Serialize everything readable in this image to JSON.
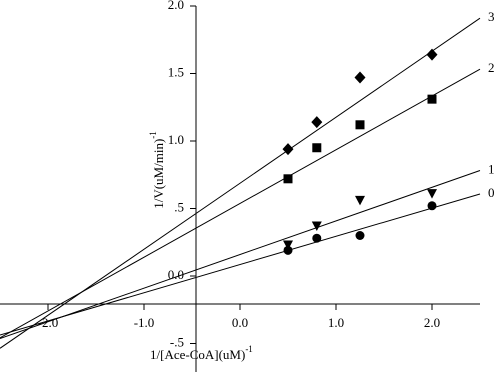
{
  "chart_data": {
    "type": "scatter",
    "xlabel": "1/[Ace-CoA](uM)",
    "xlabel_sup": "-1",
    "ylabel": "1/V(uM/min)",
    "ylabel_sup": "-1",
    "xlim": [
      -2.5,
      2.5
    ],
    "ylim": [
      -0.7,
      2.0
    ],
    "xticks": [
      {
        "value": -2,
        "label": "-2.0"
      },
      {
        "value": -1,
        "label": "-1.0"
      },
      {
        "value": 0,
        "label": "0.0"
      },
      {
        "value": 1,
        "label": "1.0"
      },
      {
        "value": 2,
        "label": "2.0"
      }
    ],
    "yticks": [
      {
        "value": -0.5,
        "label": "-.5"
      },
      {
        "value": 0,
        "label": "0.0"
      },
      {
        "value": 0.5,
        "label": ".5"
      },
      {
        "value": 1,
        "label": "1.0"
      },
      {
        "value": 1.5,
        "label": "1.5"
      },
      {
        "value": 2,
        "label": "2.0"
      }
    ],
    "x": [
      0.5,
      0.8,
      1.25,
      2.0
    ],
    "series": [
      {
        "name": "0",
        "marker": "circle",
        "color": "#000000",
        "values": [
          0.19,
          0.28,
          0.3,
          0.52
        ],
        "fit": {
          "slope": 0.209,
          "intercept": 0.085
        }
      },
      {
        "name": "1",
        "marker": "triangle-down",
        "color": "#000000",
        "values": [
          0.23,
          0.37,
          0.56,
          0.61
        ],
        "fit": {
          "slope": 0.249,
          "intercept": 0.159
        }
      },
      {
        "name": "2",
        "marker": "square",
        "color": "#000000",
        "values": [
          0.72,
          0.95,
          1.12,
          1.31
        ],
        "fit": {
          "slope": 0.398,
          "intercept": 0.537
        }
      },
      {
        "name": "3",
        "marker": "diamond",
        "color": "#000000",
        "values": [
          0.94,
          1.14,
          1.47,
          1.64
        ],
        "fit": {
          "slope": 0.489,
          "intercept": 0.687
        }
      }
    ]
  }
}
